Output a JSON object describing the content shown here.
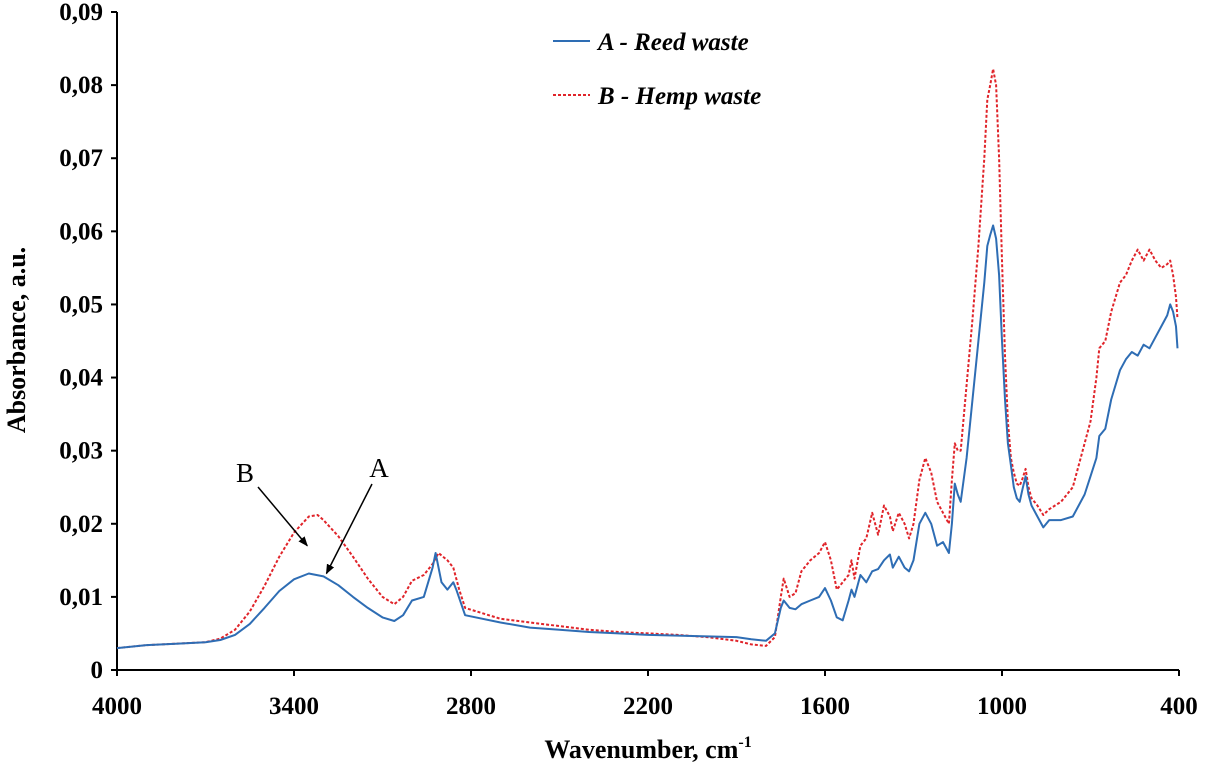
{
  "chart_data": {
    "type": "line",
    "title": "",
    "xlabel": "Wavenumber, cm",
    "xlabel_sup": "-1",
    "ylabel": "Absorbance, a.u.",
    "xlim": [
      4000,
      400
    ],
    "ylim": [
      0,
      0.09
    ],
    "x_reversed": true,
    "x_ticks": [
      4000,
      3400,
      2800,
      2200,
      1600,
      1000,
      400
    ],
    "x_tick_labels": [
      "4000",
      "3400",
      "2800",
      "2200",
      "1600",
      "1000",
      "400"
    ],
    "y_ticks": [
      0,
      0.01,
      0.02,
      0.03,
      0.04,
      0.05,
      0.06,
      0.07,
      0.08,
      0.09
    ],
    "y_tick_labels": [
      "0",
      "0,01",
      "0,02",
      "0,03",
      "0,04",
      "0,05",
      "0,06",
      "0,07",
      "0,08",
      "0,09"
    ],
    "grid": false,
    "legend_position": "top-center",
    "series": [
      {
        "name": "A - Reed waste",
        "color": "#2E6DB4",
        "style": "solid",
        "points": [
          [
            4000,
            0.003
          ],
          [
            3900,
            0.0034
          ],
          [
            3800,
            0.0036
          ],
          [
            3700,
            0.0038
          ],
          [
            3650,
            0.0041
          ],
          [
            3600,
            0.0048
          ],
          [
            3550,
            0.0063
          ],
          [
            3500,
            0.0085
          ],
          [
            3450,
            0.0108
          ],
          [
            3400,
            0.0124
          ],
          [
            3350,
            0.0132
          ],
          [
            3300,
            0.0128
          ],
          [
            3250,
            0.0116
          ],
          [
            3200,
            0.01
          ],
          [
            3150,
            0.0085
          ],
          [
            3100,
            0.0072
          ],
          [
            3060,
            0.0067
          ],
          [
            3030,
            0.0075
          ],
          [
            3000,
            0.0095
          ],
          [
            2960,
            0.01
          ],
          [
            2930,
            0.014
          ],
          [
            2920,
            0.016
          ],
          [
            2900,
            0.012
          ],
          [
            2880,
            0.011
          ],
          [
            2860,
            0.012
          ],
          [
            2850,
            0.011
          ],
          [
            2820,
            0.0075
          ],
          [
            2700,
            0.0065
          ],
          [
            2600,
            0.0058
          ],
          [
            2500,
            0.0055
          ],
          [
            2400,
            0.0052
          ],
          [
            2300,
            0.005
          ],
          [
            2200,
            0.0048
          ],
          [
            2100,
            0.0047
          ],
          [
            2000,
            0.0046
          ],
          [
            1900,
            0.0045
          ],
          [
            1850,
            0.0042
          ],
          [
            1800,
            0.004
          ],
          [
            1770,
            0.005
          ],
          [
            1750,
            0.0085
          ],
          [
            1740,
            0.0095
          ],
          [
            1720,
            0.0085
          ],
          [
            1700,
            0.0083
          ],
          [
            1680,
            0.009
          ],
          [
            1650,
            0.0095
          ],
          [
            1620,
            0.01
          ],
          [
            1600,
            0.0112
          ],
          [
            1580,
            0.0095
          ],
          [
            1560,
            0.0072
          ],
          [
            1540,
            0.0068
          ],
          [
            1520,
            0.0095
          ],
          [
            1510,
            0.011
          ],
          [
            1500,
            0.01
          ],
          [
            1480,
            0.013
          ],
          [
            1460,
            0.012
          ],
          [
            1440,
            0.0135
          ],
          [
            1420,
            0.0138
          ],
          [
            1400,
            0.015
          ],
          [
            1380,
            0.0158
          ],
          [
            1370,
            0.014
          ],
          [
            1350,
            0.0155
          ],
          [
            1330,
            0.014
          ],
          [
            1315,
            0.0135
          ],
          [
            1300,
            0.015
          ],
          [
            1280,
            0.02
          ],
          [
            1260,
            0.0215
          ],
          [
            1240,
            0.02
          ],
          [
            1220,
            0.017
          ],
          [
            1200,
            0.0175
          ],
          [
            1180,
            0.016
          ],
          [
            1170,
            0.02
          ],
          [
            1160,
            0.0255
          ],
          [
            1150,
            0.024
          ],
          [
            1140,
            0.023
          ],
          [
            1120,
            0.029
          ],
          [
            1100,
            0.037
          ],
          [
            1080,
            0.045
          ],
          [
            1060,
            0.053
          ],
          [
            1050,
            0.058
          ],
          [
            1040,
            0.0595
          ],
          [
            1030,
            0.0608
          ],
          [
            1020,
            0.059
          ],
          [
            1010,
            0.054
          ],
          [
            1000,
            0.045
          ],
          [
            990,
            0.037
          ],
          [
            980,
            0.031
          ],
          [
            970,
            0.028
          ],
          [
            960,
            0.025
          ],
          [
            950,
            0.0235
          ],
          [
            940,
            0.023
          ],
          [
            930,
            0.0248
          ],
          [
            920,
            0.0265
          ],
          [
            910,
            0.024
          ],
          [
            900,
            0.0225
          ],
          [
            880,
            0.021
          ],
          [
            860,
            0.0195
          ],
          [
            840,
            0.0205
          ],
          [
            800,
            0.0205
          ],
          [
            760,
            0.021
          ],
          [
            720,
            0.024
          ],
          [
            700,
            0.0265
          ],
          [
            680,
            0.029
          ],
          [
            670,
            0.032
          ],
          [
            650,
            0.033
          ],
          [
            630,
            0.037
          ],
          [
            600,
            0.041
          ],
          [
            580,
            0.0425
          ],
          [
            560,
            0.0435
          ],
          [
            540,
            0.043
          ],
          [
            520,
            0.0445
          ],
          [
            500,
            0.044
          ],
          [
            480,
            0.0455
          ],
          [
            460,
            0.047
          ],
          [
            440,
            0.0485
          ],
          [
            430,
            0.05
          ],
          [
            420,
            0.049
          ],
          [
            410,
            0.047
          ],
          [
            405,
            0.044
          ]
        ]
      },
      {
        "name": "B - Hemp waste",
        "color": "#E0242A",
        "style": "dashed",
        "points": [
          [
            4000,
            0.003
          ],
          [
            3900,
            0.0034
          ],
          [
            3800,
            0.0036
          ],
          [
            3700,
            0.0038
          ],
          [
            3650,
            0.0043
          ],
          [
            3600,
            0.0055
          ],
          [
            3550,
            0.008
          ],
          [
            3500,
            0.0115
          ],
          [
            3450,
            0.0155
          ],
          [
            3400,
            0.0188
          ],
          [
            3350,
            0.021
          ],
          [
            3320,
            0.0212
          ],
          [
            3300,
            0.0205
          ],
          [
            3250,
            0.0183
          ],
          [
            3200,
            0.0155
          ],
          [
            3150,
            0.0125
          ],
          [
            3100,
            0.01
          ],
          [
            3060,
            0.009
          ],
          [
            3030,
            0.01
          ],
          [
            3000,
            0.0122
          ],
          [
            2960,
            0.013
          ],
          [
            2930,
            0.0145
          ],
          [
            2910,
            0.016
          ],
          [
            2880,
            0.015
          ],
          [
            2860,
            0.014
          ],
          [
            2840,
            0.011
          ],
          [
            2820,
            0.0085
          ],
          [
            2700,
            0.007
          ],
          [
            2600,
            0.0065
          ],
          [
            2500,
            0.006
          ],
          [
            2400,
            0.0055
          ],
          [
            2300,
            0.0052
          ],
          [
            2200,
            0.005
          ],
          [
            2100,
            0.0048
          ],
          [
            2000,
            0.0045
          ],
          [
            1900,
            0.004
          ],
          [
            1850,
            0.0035
          ],
          [
            1800,
            0.0033
          ],
          [
            1770,
            0.0045
          ],
          [
            1750,
            0.01
          ],
          [
            1740,
            0.0125
          ],
          [
            1720,
            0.01
          ],
          [
            1700,
            0.0105
          ],
          [
            1680,
            0.0135
          ],
          [
            1650,
            0.015
          ],
          [
            1620,
            0.016
          ],
          [
            1600,
            0.0175
          ],
          [
            1580,
            0.015
          ],
          [
            1560,
            0.011
          ],
          [
            1540,
            0.012
          ],
          [
            1520,
            0.013
          ],
          [
            1510,
            0.015
          ],
          [
            1500,
            0.0125
          ],
          [
            1480,
            0.017
          ],
          [
            1460,
            0.018
          ],
          [
            1440,
            0.0215
          ],
          [
            1420,
            0.0185
          ],
          [
            1400,
            0.0225
          ],
          [
            1380,
            0.021
          ],
          [
            1370,
            0.019
          ],
          [
            1350,
            0.0215
          ],
          [
            1330,
            0.02
          ],
          [
            1315,
            0.018
          ],
          [
            1300,
            0.02
          ],
          [
            1280,
            0.026
          ],
          [
            1260,
            0.029
          ],
          [
            1240,
            0.027
          ],
          [
            1220,
            0.023
          ],
          [
            1200,
            0.0215
          ],
          [
            1180,
            0.02
          ],
          [
            1170,
            0.026
          ],
          [
            1160,
            0.031
          ],
          [
            1150,
            0.03
          ],
          [
            1140,
            0.03
          ],
          [
            1120,
            0.039
          ],
          [
            1100,
            0.048
          ],
          [
            1080,
            0.058
          ],
          [
            1060,
            0.07
          ],
          [
            1050,
            0.078
          ],
          [
            1040,
            0.08
          ],
          [
            1030,
            0.0822
          ],
          [
            1020,
            0.08
          ],
          [
            1010,
            0.07
          ],
          [
            1000,
            0.056
          ],
          [
            990,
            0.043
          ],
          [
            980,
            0.034
          ],
          [
            970,
            0.029
          ],
          [
            960,
            0.027
          ],
          [
            950,
            0.0255
          ],
          [
            940,
            0.0252
          ],
          [
            930,
            0.0262
          ],
          [
            920,
            0.0275
          ],
          [
            910,
            0.025
          ],
          [
            900,
            0.0235
          ],
          [
            880,
            0.0225
          ],
          [
            860,
            0.0212
          ],
          [
            840,
            0.022
          ],
          [
            800,
            0.023
          ],
          [
            760,
            0.025
          ],
          [
            720,
            0.031
          ],
          [
            700,
            0.034
          ],
          [
            680,
            0.04
          ],
          [
            670,
            0.044
          ],
          [
            650,
            0.045
          ],
          [
            630,
            0.049
          ],
          [
            600,
            0.053
          ],
          [
            580,
            0.054
          ],
          [
            560,
            0.056
          ],
          [
            540,
            0.0575
          ],
          [
            520,
            0.056
          ],
          [
            500,
            0.0575
          ],
          [
            480,
            0.056
          ],
          [
            460,
            0.055
          ],
          [
            440,
            0.0555
          ],
          [
            430,
            0.056
          ],
          [
            420,
            0.054
          ],
          [
            410,
            0.051
          ],
          [
            405,
            0.048
          ]
        ]
      }
    ],
    "annotations": [
      {
        "text": "B",
        "target": [
          3355,
          0.017
        ]
      },
      {
        "text": "A",
        "target": [
          3290,
          0.0132
        ]
      }
    ]
  }
}
